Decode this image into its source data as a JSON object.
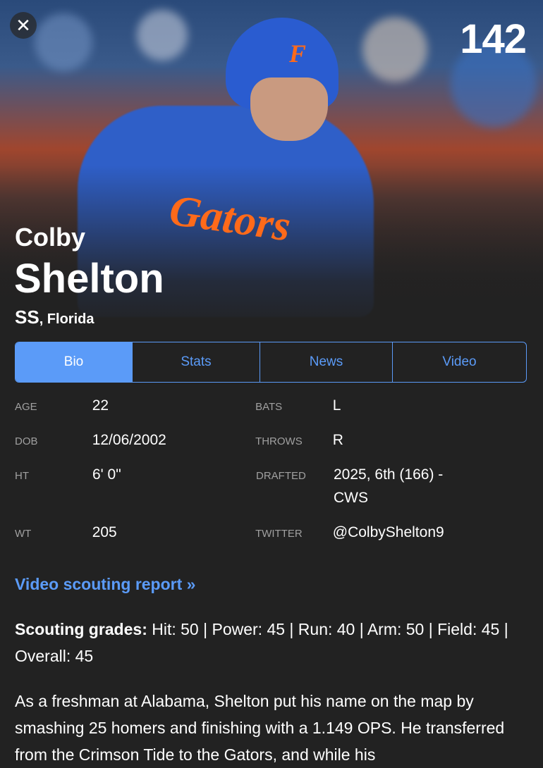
{
  "header": {
    "rank": "142",
    "close_icon": "close-icon"
  },
  "player": {
    "first_name": "Colby",
    "last_name": "Shelton",
    "position": "SS",
    "team": ", Florida"
  },
  "hero_image": {
    "helmet_logo": "F",
    "jersey_text": "Gators"
  },
  "tabs": [
    {
      "label": "Bio",
      "active": true
    },
    {
      "label": "Stats"
    },
    {
      "label": "News"
    },
    {
      "label": "Video"
    }
  ],
  "bio": {
    "age": {
      "label": "AGE",
      "value": "22"
    },
    "bats": {
      "label": "BATS",
      "value": "L"
    },
    "dob": {
      "label": "DOB",
      "value": "12/06/2002"
    },
    "throws": {
      "label": "THROWS",
      "value": "R"
    },
    "ht": {
      "label": "HT",
      "value": "6' 0\""
    },
    "drafted": {
      "label": "DRAFTED",
      "value": "2025, 6th (166) - CWS"
    },
    "wt": {
      "label": "WT",
      "value": "205"
    },
    "twitter": {
      "label": "TWITTER",
      "value": "@ColbyShelton9"
    }
  },
  "video_link": "Video scouting report »",
  "grades": {
    "label": "Scouting grades:",
    "text": " Hit: 50 | Power: 45 | Run: 40 | Arm: 50 | Field: 45 | Overall: 45"
  },
  "paragraph": "As a freshman at Alabama, Shelton put his name on the map by smashing 25 homers and finishing with a 1.149 OPS. He transferred from the Crimson Tide to the Gators, and while his",
  "colors": {
    "accent": "#5b9bf8",
    "background": "#222222",
    "gators_orange": "#ff6a1a"
  }
}
